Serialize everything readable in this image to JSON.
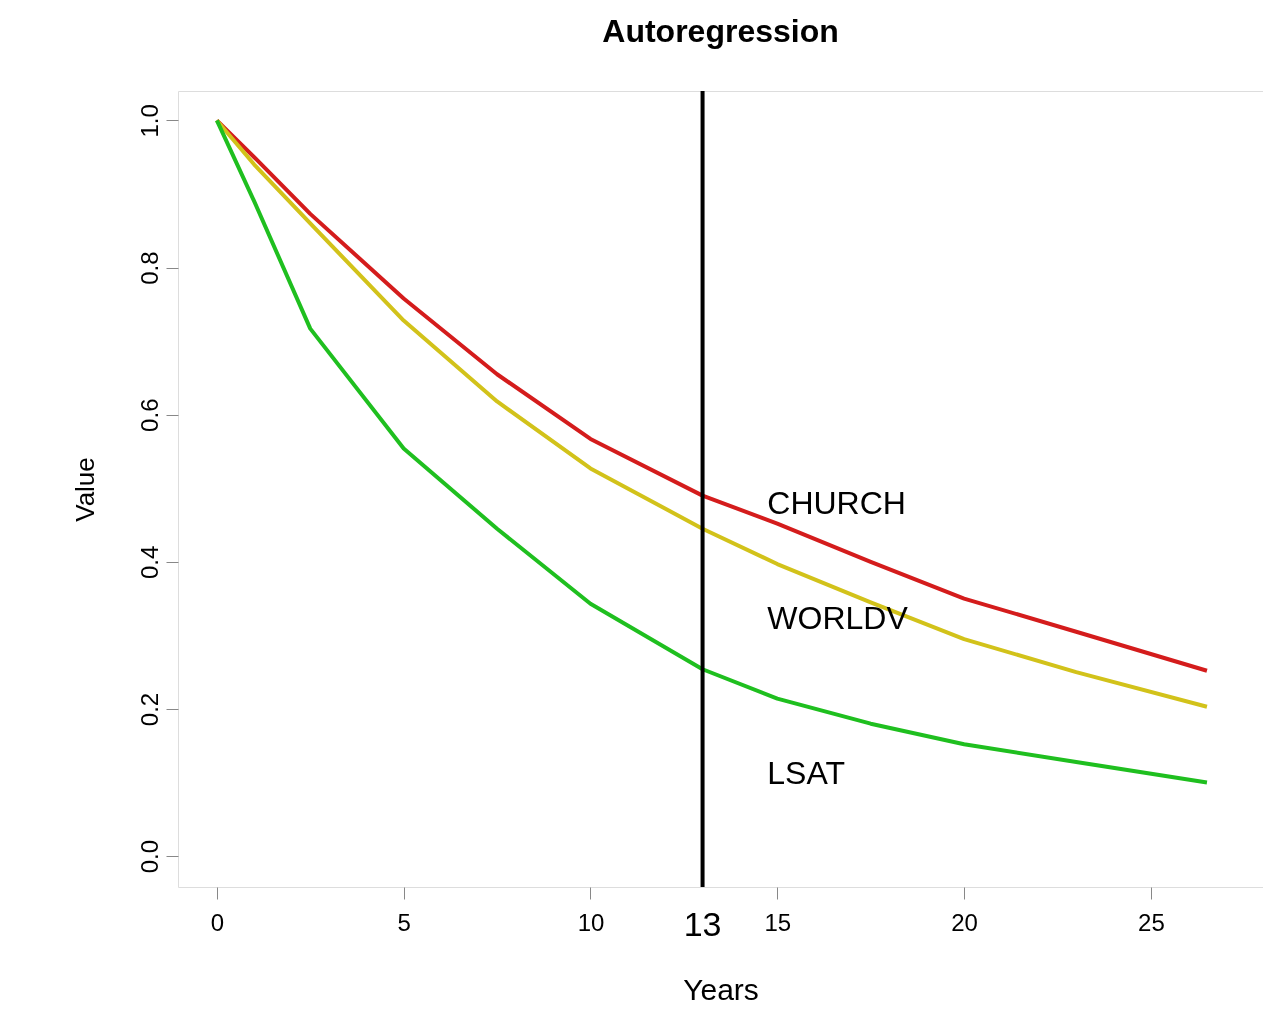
{
  "chart_data": {
    "type": "line",
    "title": "Autoregression",
    "xlabel": "Years",
    "ylabel": "Value",
    "x": [
      0,
      1,
      2.5,
      5,
      7.5,
      10,
      13,
      15,
      17.5,
      20,
      23,
      26.5
    ],
    "series": [
      {
        "name": "CHURCH",
        "color": "#d41c1c",
        "values": [
          1.0,
          0.95,
          0.873,
          0.758,
          0.655,
          0.567,
          0.49,
          0.452,
          0.4,
          0.35,
          0.305,
          0.252
        ]
      },
      {
        "name": "WORLDV",
        "color": "#d2c21a",
        "values": [
          1.0,
          0.94,
          0.86,
          0.728,
          0.618,
          0.527,
          0.445,
          0.397,
          0.345,
          0.295,
          0.25,
          0.203
        ]
      },
      {
        "name": "LSAT",
        "color": "#1fbf1f",
        "values": [
          1.0,
          0.89,
          0.717,
          0.554,
          0.445,
          0.343,
          0.254,
          0.214,
          0.18,
          0.152,
          0.128,
          0.1
        ]
      }
    ],
    "xlim": [
      -1.04,
      28
    ],
    "ylim": [
      -0.042,
      1.04
    ],
    "xticks": [
      0,
      5,
      10,
      15,
      20,
      25
    ],
    "yticks": [
      {
        "value": 0,
        "label": "0.0"
      },
      0.2,
      0.4,
      0.6,
      0.8,
      {
        "value": 1,
        "label": "1.0"
      }
    ],
    "ref_lines": [
      {
        "axis": "x",
        "value": 13,
        "label": "13",
        "color": "#000000"
      }
    ],
    "grid": false,
    "marker": "none",
    "line_style": "solid"
  }
}
